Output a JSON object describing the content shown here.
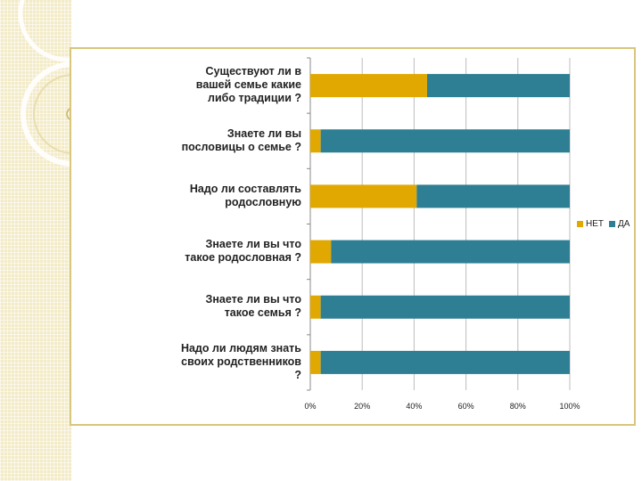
{
  "chart_data": {
    "type": "bar",
    "orientation": "horizontal",
    "stacked": true,
    "percent_stacked": true,
    "categories": [
      "Существуют ли в\nвашей семье какие\nлибо традиции ?",
      "Знаете ли вы\nпословицы о семье ?",
      "Надо ли составлять\nродословную",
      "Знаете ли вы что\nтакое родословная ?",
      "Знаете ли вы что\nтакое семья ?",
      "Надо ли людям знать\nсвоих родственников\n?"
    ],
    "series": [
      {
        "name": "НЕТ",
        "values": [
          45,
          4,
          41,
          8,
          4,
          4
        ]
      },
      {
        "name": "ДА",
        "values": [
          55,
          96,
          59,
          92,
          96,
          96
        ]
      }
    ],
    "x_ticks": [
      "0%",
      "20%",
      "40%",
      "60%",
      "80%",
      "100%"
    ],
    "xlim": [
      0,
      100
    ],
    "grid": true,
    "legend_position": "right",
    "colors": {
      "НЕТ": "#e0a800",
      "ДА": "#2e7f93",
      "frame": "#d8c67c",
      "grid": "#bdbdbd"
    }
  }
}
